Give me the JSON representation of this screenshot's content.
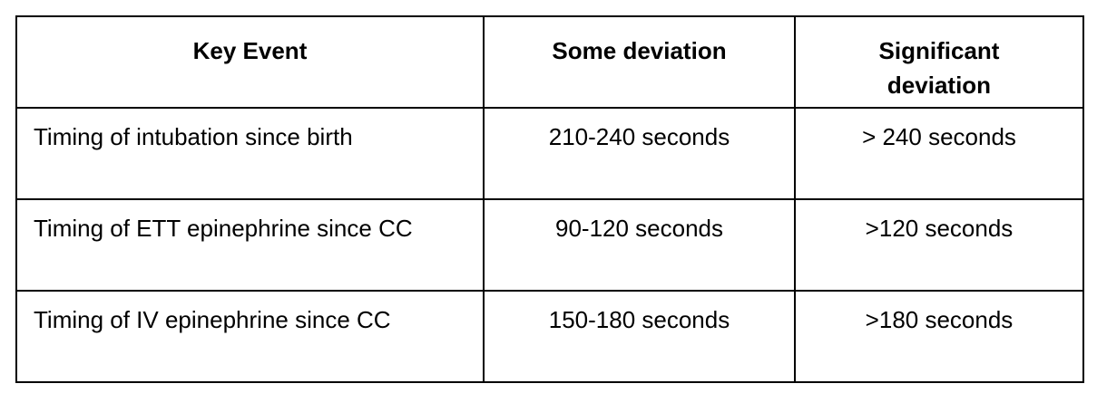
{
  "table": {
    "header": [
      "Key Event",
      "Some deviation",
      "Significant deviation"
    ],
    "rows": [
      [
        "Timing of intubation since birth",
        "210-240 seconds",
        "> 240 seconds"
      ],
      [
        "Timing of ETT epinephrine since CC",
        "90-120 seconds",
        ">120 seconds"
      ],
      [
        "Timing of IV epinephrine since CC",
        "150-180 seconds",
        ">180 seconds"
      ]
    ]
  }
}
